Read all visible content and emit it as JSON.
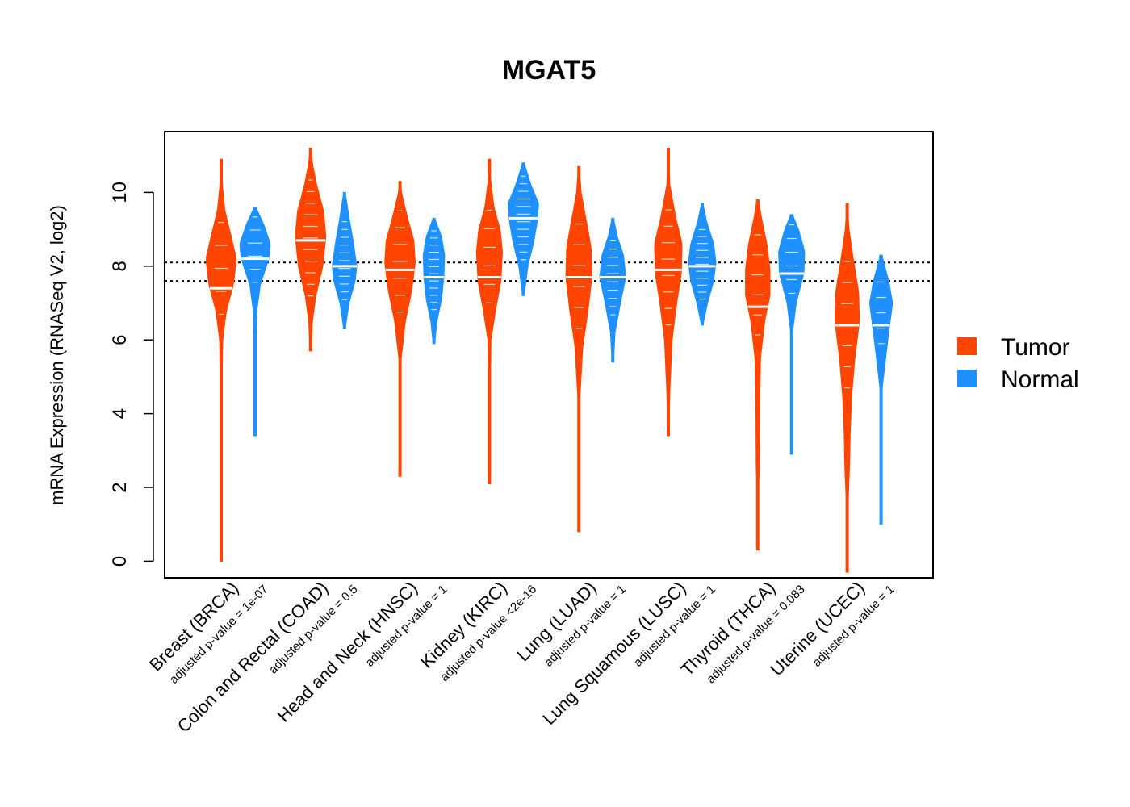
{
  "colors": {
    "tumor": "#ff4500",
    "normal": "#1e90ff"
  },
  "chart_data": {
    "type": "violin",
    "title": "MGAT5",
    "ylabel": "mRNA Expression (RNASeq V2, log2)",
    "ylim": [
      -0.45,
      11.65
    ],
    "yticks": [
      "0",
      "2",
      "4",
      "6",
      "8",
      "10"
    ],
    "reference_lines": [
      8.1,
      7.6
    ],
    "legend": {
      "position": "right",
      "entries": [
        "Tumor",
        "Normal"
      ]
    },
    "groups": [
      {
        "category": "Breast (BRCA)",
        "pvalue": "adjusted p-value = 1e-07",
        "tumor": {
          "median": 7.4,
          "min": 0.0,
          "max": 10.9,
          "profile": [
            [
              0,
              0.03
            ],
            [
              2,
              0.03
            ],
            [
              4,
              0.04
            ],
            [
              6,
              0.1
            ],
            [
              6.8,
              0.35
            ],
            [
              7.5,
              0.8
            ],
            [
              8.2,
              1.0
            ],
            [
              8.9,
              0.6
            ],
            [
              9.5,
              0.25
            ],
            [
              10.2,
              0.08
            ],
            [
              10.9,
              0.03
            ]
          ]
        },
        "normal": {
          "median": 8.2,
          "min": 3.4,
          "max": 9.6,
          "profile": [
            [
              3.4,
              0.05
            ],
            [
              4.4,
              0.05
            ],
            [
              5.9,
              0.06
            ],
            [
              6.8,
              0.12
            ],
            [
              7.5,
              0.35
            ],
            [
              8.2,
              0.9
            ],
            [
              8.6,
              1.0
            ],
            [
              9.1,
              0.6
            ],
            [
              9.6,
              0.05
            ]
          ]
        }
      },
      {
        "category": "Colon and Rectal (COAD)",
        "pvalue": "adjusted p-value = 0.5",
        "tumor": {
          "median": 8.7,
          "min": 5.7,
          "max": 11.2,
          "profile": [
            [
              5.7,
              0.05
            ],
            [
              6.5,
              0.12
            ],
            [
              7.2,
              0.35
            ],
            [
              8.0,
              0.8
            ],
            [
              8.8,
              1.0
            ],
            [
              9.5,
              0.85
            ],
            [
              10.2,
              0.4
            ],
            [
              10.8,
              0.12
            ],
            [
              11.2,
              0.04
            ]
          ]
        },
        "normal": {
          "median": 8.0,
          "min": 6.3,
          "max": 10.0,
          "profile": [
            [
              6.3,
              0.05
            ],
            [
              7.0,
              0.3
            ],
            [
              7.6,
              0.7
            ],
            [
              8.0,
              0.8
            ],
            [
              8.6,
              0.6
            ],
            [
              9.2,
              0.35
            ],
            [
              10.0,
              0.05
            ]
          ]
        }
      },
      {
        "category": "Head and Neck (HNSC)",
        "pvalue": "adjusted p-value = 1",
        "tumor": {
          "median": 7.9,
          "min": 2.3,
          "max": 10.3,
          "profile": [
            [
              2.3,
              0.03
            ],
            [
              3.8,
              0.05
            ],
            [
              5.5,
              0.08
            ],
            [
              6.5,
              0.35
            ],
            [
              7.3,
              0.75
            ],
            [
              8.1,
              1.0
            ],
            [
              8.7,
              0.9
            ],
            [
              9.3,
              0.5
            ],
            [
              10.0,
              0.1
            ],
            [
              10.3,
              0.03
            ]
          ]
        },
        "normal": {
          "median": 7.7,
          "min": 5.9,
          "max": 9.3,
          "profile": [
            [
              5.9,
              0.05
            ],
            [
              6.5,
              0.2
            ],
            [
              7.1,
              0.5
            ],
            [
              7.7,
              0.65
            ],
            [
              8.3,
              0.7
            ],
            [
              8.8,
              0.5
            ],
            [
              9.3,
              0.05
            ]
          ]
        }
      },
      {
        "category": "Kidney (KIRC)",
        "pvalue": "adjusted p-value <2e-16",
        "tumor": {
          "median": 7.7,
          "min": 2.1,
          "max": 10.9,
          "profile": [
            [
              2.1,
              0.03
            ],
            [
              4.0,
              0.05
            ],
            [
              6.0,
              0.1
            ],
            [
              6.8,
              0.4
            ],
            [
              7.6,
              0.75
            ],
            [
              8.4,
              0.85
            ],
            [
              9.0,
              0.7
            ],
            [
              9.6,
              0.3
            ],
            [
              10.4,
              0.06
            ],
            [
              10.9,
              0.03
            ]
          ]
        },
        "normal": {
          "median": 9.3,
          "min": 7.2,
          "max": 10.8,
          "profile": [
            [
              7.2,
              0.05
            ],
            [
              8.0,
              0.3
            ],
            [
              8.7,
              0.7
            ],
            [
              9.2,
              0.9
            ],
            [
              9.7,
              1.0
            ],
            [
              10.2,
              0.5
            ],
            [
              10.8,
              0.05
            ]
          ]
        }
      },
      {
        "category": "Lung (LUAD)",
        "pvalue": "adjusted p-value = 1",
        "tumor": {
          "median": 7.7,
          "min": 0.8,
          "max": 10.7,
          "profile": [
            [
              0.8,
              0.03
            ],
            [
              2.5,
              0.03
            ],
            [
              4.5,
              0.08
            ],
            [
              5.8,
              0.25
            ],
            [
              6.8,
              0.6
            ],
            [
              7.7,
              0.85
            ],
            [
              8.5,
              0.8
            ],
            [
              9.2,
              0.5
            ],
            [
              10.0,
              0.15
            ],
            [
              10.7,
              0.03
            ]
          ]
        },
        "normal": {
          "median": 7.7,
          "min": 5.4,
          "max": 9.3,
          "profile": [
            [
              5.4,
              0.05
            ],
            [
              6.2,
              0.15
            ],
            [
              7.0,
              0.5
            ],
            [
              7.7,
              0.85
            ],
            [
              8.3,
              0.7
            ],
            [
              8.8,
              0.3
            ],
            [
              9.3,
              0.05
            ]
          ]
        }
      },
      {
        "category": "Lung Squamous (LUSC)",
        "pvalue": "adjusted p-value = 1",
        "tumor": {
          "median": 7.9,
          "min": 3.4,
          "max": 11.2,
          "profile": [
            [
              3.4,
              0.03
            ],
            [
              4.6,
              0.1
            ],
            [
              6.0,
              0.25
            ],
            [
              7.0,
              0.55
            ],
            [
              7.8,
              0.85
            ],
            [
              8.6,
              0.9
            ],
            [
              9.3,
              0.5
            ],
            [
              10.2,
              0.1
            ],
            [
              11.2,
              0.03
            ]
          ]
        },
        "normal": {
          "median": 8.0,
          "min": 6.4,
          "max": 9.7,
          "profile": [
            [
              6.4,
              0.05
            ],
            [
              7.0,
              0.35
            ],
            [
              7.6,
              0.75
            ],
            [
              8.1,
              0.9
            ],
            [
              8.6,
              0.75
            ],
            [
              9.2,
              0.3
            ],
            [
              9.7,
              0.05
            ]
          ]
        }
      },
      {
        "category": "Thyroid (THCA)",
        "pvalue": "adjusted p-value = 0.083",
        "tumor": {
          "median": 6.9,
          "min": 0.3,
          "max": 9.8,
          "profile": [
            [
              0.3,
              0.03
            ],
            [
              1.8,
              0.03
            ],
            [
              2.5,
              0.1
            ],
            [
              4.0,
              0.12
            ],
            [
              5.5,
              0.18
            ],
            [
              6.5,
              0.45
            ],
            [
              7.2,
              0.8
            ],
            [
              7.9,
              0.8
            ],
            [
              8.6,
              0.6
            ],
            [
              9.3,
              0.25
            ],
            [
              9.8,
              0.05
            ]
          ]
        },
        "normal": {
          "median": 7.8,
          "min": 2.9,
          "max": 9.4,
          "profile": [
            [
              2.9,
              0.05
            ],
            [
              3.8,
              0.08
            ],
            [
              5.2,
              0.05
            ],
            [
              6.2,
              0.06
            ],
            [
              7.0,
              0.3
            ],
            [
              7.8,
              0.8
            ],
            [
              8.4,
              0.85
            ],
            [
              9.0,
              0.45
            ],
            [
              9.4,
              0.05
            ]
          ]
        }
      },
      {
        "category": "Uterine (UCEC)",
        "pvalue": "adjusted p-value = 1",
        "tumor": {
          "median": 6.4,
          "min": -0.3,
          "max": 9.7,
          "profile": [
            [
              -0.3,
              0.03
            ],
            [
              0.3,
              0.03
            ],
            [
              1.5,
              0.05
            ],
            [
              2.5,
              0.15
            ],
            [
              3.5,
              0.2
            ],
            [
              4.5,
              0.3
            ],
            [
              5.5,
              0.5
            ],
            [
              6.5,
              0.8
            ],
            [
              7.3,
              0.75
            ],
            [
              8.2,
              0.4
            ],
            [
              9.0,
              0.12
            ],
            [
              9.7,
              0.03
            ]
          ]
        },
        "normal": {
          "median": 6.4,
          "min": 1.0,
          "max": 8.3,
          "profile": [
            [
              1.0,
              0.05
            ],
            [
              1.8,
              0.05
            ],
            [
              4.7,
              0.08
            ],
            [
              5.5,
              0.3
            ],
            [
              6.2,
              0.5
            ],
            [
              7.0,
              0.75
            ],
            [
              7.6,
              0.5
            ],
            [
              8.3,
              0.05
            ]
          ]
        }
      }
    ]
  }
}
